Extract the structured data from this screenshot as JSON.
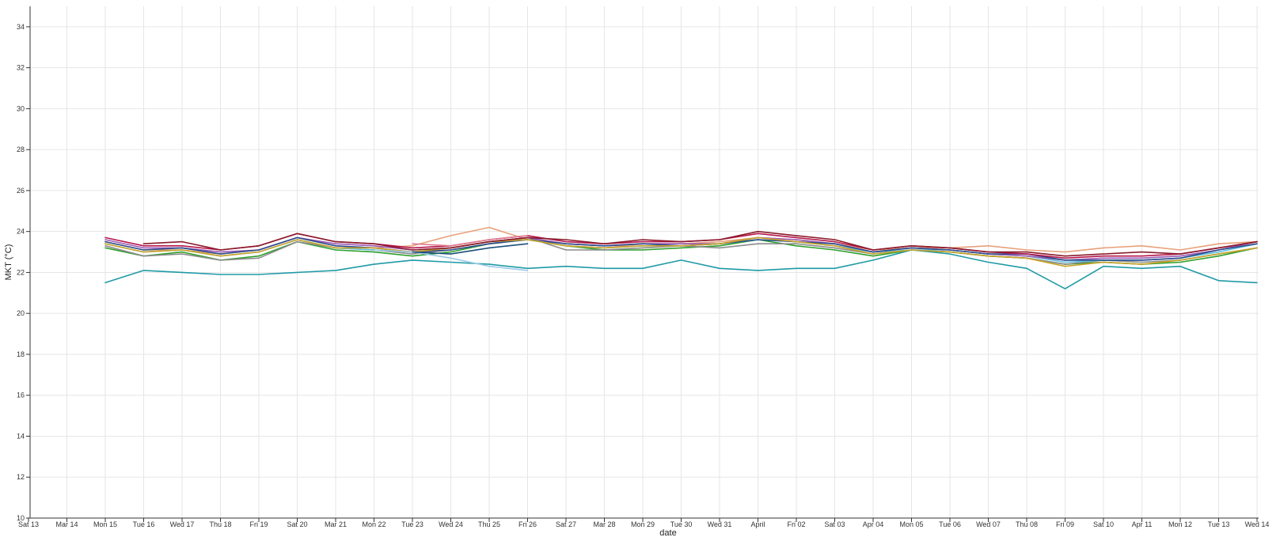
{
  "chart_data": {
    "type": "line",
    "title": "",
    "xlabel": "date",
    "ylabel": "MKT (°C)",
    "x_ticks": [
      "Sat 13",
      "Mar 14",
      "Mon 15",
      "Tue 16",
      "Wed 17",
      "Thu 18",
      "Fri 19",
      "Sat 20",
      "Mar 21",
      "Mon 22",
      "Tue 23",
      "Wed 24",
      "Thu 25",
      "Fri 26",
      "Sat 27",
      "Mar 28",
      "Mon 29",
      "Tue 30",
      "Wed 31",
      "April",
      "Fri 02",
      "Sat 03",
      "Apr 04",
      "Mon 05",
      "Tue 06",
      "Wed 07",
      "Thu 08",
      "Fri 09",
      "Sat 10",
      "Apr 11",
      "Mon 12",
      "Tue 13",
      "Wed 14"
    ],
    "ylim": [
      10,
      35
    ],
    "y_ticks": [
      "10",
      "12",
      "14",
      "16",
      "18",
      "20",
      "22",
      "24",
      "26",
      "28",
      "30",
      "32",
      "34"
    ],
    "grid": true,
    "legend": "none",
    "series": [
      {
        "color": "#1f9aa6",
        "x": [
          2.0,
          3.0,
          4.0,
          5.0,
          6.0,
          7.0,
          8.0,
          9.0,
          10.0,
          11.0,
          12.0,
          13.0,
          14.0,
          15.0,
          16.0,
          17.0,
          18.0,
          19.0,
          20.0,
          21.0,
          22.0,
          23.0,
          24.0,
          25.0,
          26.0,
          27.0,
          28.0,
          29.0,
          30.0,
          31.0,
          32.0
        ],
        "values": [
          21.5,
          22.1,
          22.0,
          21.9,
          21.9,
          22.0,
          22.1,
          22.4,
          22.6,
          22.5,
          22.4,
          22.2,
          22.3,
          22.2,
          22.2,
          22.6,
          22.2,
          22.1,
          22.2,
          22.2,
          22.6,
          23.1,
          22.9,
          22.5,
          22.2,
          21.2,
          22.3,
          22.2,
          22.3,
          21.6,
          21.5
        ]
      },
      {
        "color": "#2ca02c",
        "x": [
          2.0,
          3.0,
          4.0,
          5.0,
          6.0,
          7.0,
          8.0,
          9.0,
          10.0,
          11.0,
          12.0,
          13.0,
          14.0,
          15.0,
          16.0,
          17.0,
          18.0,
          19.0,
          20.0,
          21.0,
          22.0,
          23.0,
          24.0,
          25.0,
          26.0,
          27.0,
          28.0,
          29.0,
          30.0,
          31.0,
          32.0
        ],
        "values": [
          23.2,
          22.8,
          23.0,
          22.6,
          22.8,
          23.5,
          23.1,
          23.0,
          22.8,
          23.0,
          23.4,
          23.6,
          23.3,
          23.1,
          23.1,
          23.2,
          23.3,
          23.6,
          23.3,
          23.1,
          22.8,
          23.1,
          23.0,
          22.8,
          22.7,
          22.4,
          22.5,
          22.4,
          22.5,
          22.8,
          23.2
        ]
      },
      {
        "color": "#8c8c8c",
        "x": [
          2.0,
          3.0,
          4.0,
          5.0,
          6.0,
          7.0,
          8.0,
          9.0,
          10.0,
          11.0,
          12.0,
          13.0,
          14.0,
          15.0,
          16.0,
          17.0,
          18.0,
          19.0,
          20.0,
          21.0,
          22.0,
          23.0,
          24.0,
          25.0,
          26.0,
          27.0,
          28.0,
          29.0,
          30.0,
          31.0,
          32.0
        ],
        "values": [
          23.3,
          22.8,
          22.9,
          22.6,
          22.7,
          23.5,
          23.2,
          23.1,
          22.9,
          23.1,
          23.4,
          23.7,
          23.1,
          23.1,
          23.2,
          23.3,
          23.2,
          23.4,
          23.4,
          23.2,
          22.9,
          23.1,
          23.0,
          22.8,
          22.7,
          22.4,
          22.6,
          22.5,
          22.6,
          22.9,
          23.2
        ]
      },
      {
        "color": "#e8a07a",
        "x": [
          2.0,
          3.0,
          4.0,
          5.0,
          6.0,
          7.0,
          8.0,
          9.0,
          10.0,
          11.0,
          12.0,
          13.0,
          14.0,
          15.0,
          16.0,
          17.0,
          18.0,
          19.0,
          20.0,
          21.0,
          22.0,
          23.0,
          24.0,
          25.0,
          26.0,
          27.0,
          28.0,
          29.0,
          30.0,
          31.0,
          32.0
        ],
        "values": [
          23.5,
          23.1,
          23.1,
          22.9,
          23.1,
          23.7,
          23.3,
          23.2,
          23.3,
          23.8,
          24.2,
          23.6,
          23.3,
          23.2,
          23.4,
          23.4,
          23.5,
          23.7,
          23.6,
          23.4,
          23.1,
          23.2,
          23.2,
          23.3,
          23.1,
          23.0,
          23.2,
          23.3,
          23.1,
          23.4,
          23.5
        ]
      },
      {
        "color": "#5bc0de",
        "x": [
          2.0,
          3.0,
          4.0,
          5.0,
          6.0,
          7.0,
          8.0,
          9.0,
          10.0,
          11.0,
          12.0,
          13.0,
          14.0,
          15.0,
          16.0,
          17.0,
          18.0,
          19.0,
          20.0,
          21.0,
          22.0,
          23.0,
          24.0,
          25.0,
          26.0,
          27.0,
          28.0,
          29.0,
          30.0,
          31.0,
          32.0
        ],
        "values": [
          23.4,
          23.0,
          23.1,
          22.8,
          23.0,
          23.6,
          23.2,
          23.1,
          23.0,
          23.2,
          23.5,
          23.6,
          23.3,
          23.2,
          23.3,
          23.3,
          23.4,
          23.6,
          23.5,
          23.3,
          23.0,
          23.1,
          23.1,
          22.9,
          22.8,
          22.5,
          22.6,
          22.6,
          22.7,
          23.0,
          23.4
        ]
      },
      {
        "color": "#9b59b6",
        "x": [
          2.0,
          3.0,
          4.0,
          5.0,
          6.0,
          7.0,
          8.0,
          9.0,
          10.0,
          11.0,
          12.0,
          13.0,
          14.0,
          15.0,
          16.0,
          17.0,
          18.0,
          19.0,
          20.0,
          21.0,
          22.0,
          23.0,
          24.0,
          25.0,
          26.0,
          27.0,
          28.0,
          29.0,
          30.0,
          31.0,
          32.0
        ],
        "values": [
          23.6,
          23.2,
          23.2,
          23.0,
          23.1,
          23.7,
          23.4,
          23.3,
          23.1,
          23.2,
          23.5,
          23.7,
          23.4,
          23.3,
          23.4,
          23.4,
          23.4,
          23.7,
          23.6,
          23.4,
          23.0,
          23.2,
          23.1,
          22.9,
          22.8,
          22.6,
          22.7,
          22.7,
          22.8,
          23.1,
          23.5
        ]
      },
      {
        "color": "#2b4c8c",
        "x": [
          2.0,
          3.0,
          4.0,
          5.0,
          6.0,
          7.0,
          8.0,
          9.0,
          10.0,
          11.0,
          12.0,
          13.0,
          14.0,
          15.0,
          16.0,
          17.0,
          18.0,
          19.0,
          20.0,
          21.0,
          22.0,
          23.0,
          24.0,
          25.0,
          26.0,
          27.0,
          28.0,
          29.0,
          30.0,
          31.0,
          32.0
        ],
        "values": [
          23.5,
          23.1,
          23.2,
          22.9,
          23.1,
          23.7,
          23.3,
          23.2,
          23.0,
          23.1,
          23.4,
          23.6,
          23.4,
          23.3,
          23.4,
          23.3,
          23.4,
          23.6,
          23.5,
          23.4,
          23.0,
          23.2,
          23.1,
          22.9,
          22.9,
          22.6,
          22.6,
          22.6,
          22.7,
          23.1,
          23.4
        ]
      },
      {
        "color": "#c9a227",
        "x": [
          2.0,
          3.0,
          4.0,
          5.0,
          6.0,
          7.0,
          8.0,
          9.0,
          10.0,
          11.0,
          12.0,
          13.0,
          14.0,
          15.0,
          16.0,
          17.0,
          18.0,
          19.0,
          20.0,
          21.0,
          22.0,
          23.0,
          24.0,
          25.0,
          26.0,
          27.0,
          28.0,
          29.0,
          30.0,
          31.0,
          32.0
        ],
        "values": [
          23.4,
          23.0,
          23.1,
          22.8,
          23.0,
          23.6,
          23.2,
          23.2,
          23.0,
          23.2,
          23.5,
          23.6,
          23.3,
          23.2,
          23.3,
          23.3,
          23.4,
          23.7,
          23.5,
          23.3,
          22.9,
          23.1,
          23.0,
          22.8,
          22.7,
          22.3,
          22.5,
          22.4,
          22.6,
          22.9,
          23.2
        ]
      },
      {
        "color": "#b5174a",
        "x": [
          2.0,
          3.0,
          4.0,
          5.0,
          6.0,
          7.0,
          8.0,
          9.0,
          10.0,
          11.0,
          12.0,
          13.0,
          14.0,
          15.0,
          16.0,
          17.0,
          18.0,
          19.0,
          20.0,
          21.0,
          22.0,
          23.0,
          24.0,
          25.0,
          26.0,
          27.0,
          28.0,
          29.0,
          30.0,
          31.0,
          32.0
        ],
        "values": [
          23.7,
          23.3,
          23.3,
          23.1,
          23.3,
          23.9,
          23.5,
          23.4,
          23.2,
          23.3,
          23.6,
          23.8,
          23.5,
          23.4,
          23.5,
          23.5,
          23.6,
          23.9,
          23.7,
          23.5,
          23.1,
          23.3,
          23.2,
          23.0,
          22.9,
          22.7,
          22.8,
          22.8,
          22.9,
          23.2,
          23.5
        ]
      },
      {
        "color": "#8b1a2b",
        "x": [
          3.0,
          4.0,
          5.0,
          6.0,
          7.0,
          8.0,
          9.0,
          10.0,
          11.0,
          12.0,
          13.0,
          14.0,
          15.0,
          16.0,
          17.0,
          18.0,
          19.0,
          20.0,
          21.0,
          22.0,
          23.0,
          24.0,
          25.0,
          26.0,
          27.0,
          28.0,
          29.0,
          30.0,
          31.0,
          32.0
        ],
        "values": [
          23.4,
          23.5,
          23.1,
          23.3,
          23.9,
          23.5,
          23.4,
          23.1,
          23.2,
          23.5,
          23.7,
          23.6,
          23.4,
          23.6,
          23.5,
          23.6,
          24.0,
          23.8,
          23.6,
          23.1,
          23.3,
          23.2,
          23.0,
          23.0,
          22.8,
          22.9,
          23.0,
          22.9,
          23.2,
          23.5
        ]
      },
      {
        "color": "#9ec9e6",
        "x": [
          9.0,
          10.0,
          11.0,
          12.0,
          13.0
        ],
        "values": [
          23.1,
          23.0,
          22.7,
          22.3,
          22.1
        ]
      },
      {
        "color": "#e07b91",
        "x": [
          10.0,
          11.0,
          12.0,
          13.0
        ],
        "values": [
          23.4,
          23.3,
          23.6,
          23.8
        ]
      },
      {
        "color": "#1b4f7a",
        "x": [
          10.0,
          11.0,
          12.0,
          13.0
        ],
        "values": [
          23.0,
          22.9,
          23.2,
          23.4
        ]
      }
    ]
  }
}
